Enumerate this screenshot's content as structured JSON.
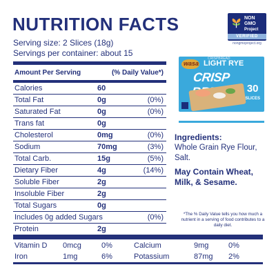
{
  "title": "NUTRITION FACTS",
  "serving_size": "Serving size: 2 Slices (18g)",
  "servings_per_container": "Servings per container: about 15",
  "badge": {
    "line1": "NON",
    "line2": "GMO",
    "line3": "Project",
    "verified": "VERIFIED",
    "site": "nongmoproject.org",
    "color": "#1b2c7a"
  },
  "table": {
    "header_left": "Amount Per Serving",
    "header_right": "(% Daily Value*)",
    "rows": [
      {
        "name": "Calories",
        "amount": "60",
        "dv": ""
      },
      {
        "name": "Total Fat",
        "amount": "0g",
        "dv": "(0%)"
      },
      {
        "name": "Saturated Fat",
        "amount": "0g",
        "dv": "(0%)"
      },
      {
        "name": "Trans fat",
        "amount": "0g",
        "dv": ""
      },
      {
        "name": "Cholesterol",
        "amount": "0mg",
        "dv": "(0%)"
      },
      {
        "name": "Sodium",
        "amount": "70mg",
        "dv": "(3%)"
      },
      {
        "name": "Total Carb.",
        "amount": "15g",
        "dv": "(5%)"
      },
      {
        "name": "Dietary Fiber",
        "amount": "4g",
        "dv": "(14%)"
      },
      {
        "name": "Soluble Fiber",
        "amount": "2g",
        "dv": ""
      },
      {
        "name": "Insoluble Fiber",
        "amount": "2g",
        "dv": ""
      },
      {
        "name": "Total Sugars",
        "amount": "0g",
        "dv": ""
      },
      {
        "name": "Includes 0g added Sugars",
        "amount": "",
        "dv": "(0%)"
      },
      {
        "name": "Protein",
        "amount": "2g",
        "dv": ""
      }
    ]
  },
  "vitamins": [
    [
      {
        "name": "Vitamin D",
        "amount": "0mcg",
        "dv": "0%"
      },
      {
        "name": "Calcium",
        "amount": "9mg",
        "dv": "0%"
      }
    ],
    [
      {
        "name": "Iron",
        "amount": "1mg",
        "dv": "6%"
      },
      {
        "name": "Potassium",
        "amount": "87mg",
        "dv": "2%"
      }
    ]
  ],
  "product": {
    "brand": "wasa",
    "variety": "LIGHT RYE",
    "name": "CRISP BREAD",
    "top_tag": "CRISPBREAD",
    "count": "30",
    "count_unit": "SLICES",
    "color": "#3aa9dc"
  },
  "ingredients": {
    "heading": "Ingredients:",
    "text": "Whole Grain Rye Flour, Salt.",
    "allergen": "May Contain Wheat, Milk, & Sesame."
  },
  "footnote": "*The % Daily Value tells you how much a nutrient in a serving of food contributes to a daily diet."
}
